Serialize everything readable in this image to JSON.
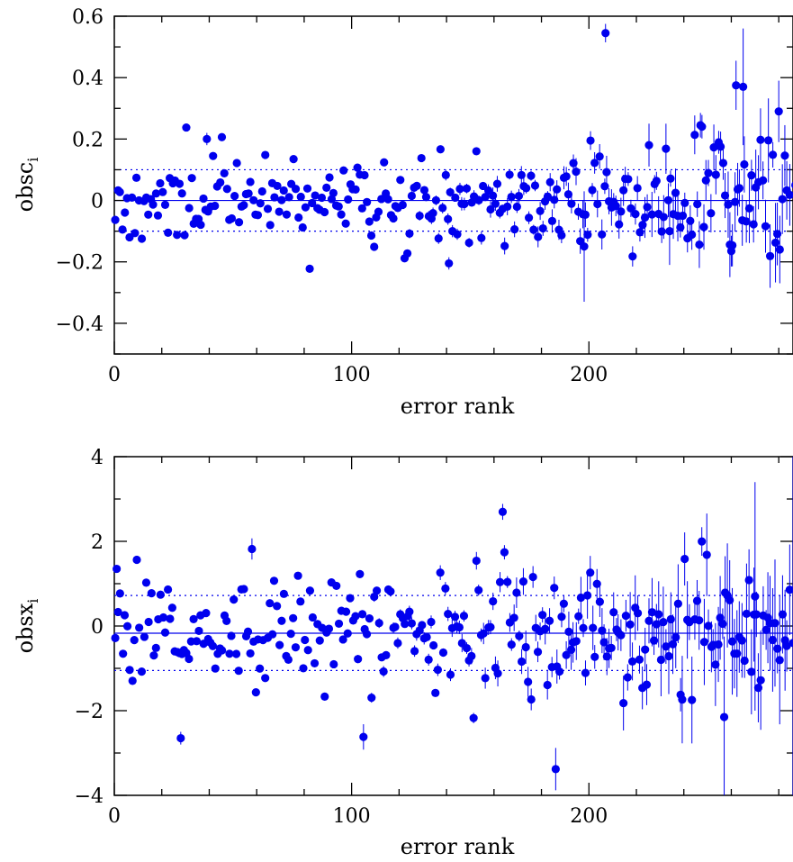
{
  "chart_data": [
    {
      "type": "scatter",
      "xlabel": "error rank",
      "ylabel_main": "obsc",
      "ylabel_sub": "i",
      "xlim": [
        0,
        286
      ],
      "ylim": [
        -0.5,
        0.6
      ],
      "xticks_major": [
        0,
        100,
        200
      ],
      "xtick_labels": [
        "0",
        "100",
        "200"
      ],
      "xticks_minor_step": 20,
      "yticks_major": [
        -0.4,
        -0.2,
        0,
        0.2,
        0.4,
        0.6
      ],
      "ytick_labels": [
        "−0.4",
        "−0.2",
        "0",
        "0.2",
        "0.4",
        "0.6"
      ],
      "yticks_minor_step": 0.1,
      "reference_line": 0,
      "dashed_lines": [
        0.1,
        -0.1
      ],
      "seed": 11,
      "n_points": 285,
      "base_spread": 0.085,
      "spread_growth": 0.06,
      "base_error": 0.005,
      "error_growth": 0.11,
      "notable_points": [
        {
          "x": 207,
          "y": 0.545,
          "err": 0.03
        },
        {
          "x": 262,
          "y": 0.375,
          "err": 0.08
        },
        {
          "x": 265,
          "y": 0.37,
          "err": 0.19
        },
        {
          "x": 280,
          "y": 0.29,
          "err": 0.1
        },
        {
          "x": 247,
          "y": 0.245,
          "err": 0.04
        },
        {
          "x": 39,
          "y": 0.2,
          "err": 0.02
        },
        {
          "x": 141,
          "y": -0.205,
          "err": 0.02
        },
        {
          "x": 198,
          "y": -0.15,
          "err": 0.18
        },
        {
          "x": 260,
          "y": -0.165,
          "err": 0.05
        },
        {
          "x": 234,
          "y": -0.1,
          "err": 0.11
        },
        {
          "x": 287,
          "y": 0.05,
          "err": 0.14
        }
      ],
      "color": "#0000ee"
    },
    {
      "type": "scatter",
      "xlabel": "error rank",
      "ylabel_main": "obsx",
      "ylabel_sub": "i",
      "xlim": [
        0,
        286
      ],
      "ylim": [
        -4,
        4
      ],
      "xticks_major": [
        0,
        100,
        200
      ],
      "xtick_labels": [
        "0",
        "100",
        "200"
      ],
      "xticks_minor_step": 20,
      "yticks_major": [
        -4,
        -2,
        0,
        2,
        4
      ],
      "ytick_labels": [
        "−4",
        "−2",
        "0",
        "2",
        "4"
      ],
      "yticks_minor_step": 1,
      "reference_line": -0.17,
      "dashed_lines": [
        0.72,
        -1.05
      ],
      "seed": 29,
      "n_points": 285,
      "base_spread": 0.75,
      "spread_growth": 0.35,
      "base_error": 0.04,
      "error_growth": 1.3,
      "notable_points": [
        {
          "x": 1,
          "y": 1.35,
          "err": 0.05
        },
        {
          "x": 28,
          "y": -2.65,
          "err": 0.15
        },
        {
          "x": 58,
          "y": 1.82,
          "err": 0.25
        },
        {
          "x": 105,
          "y": -2.62,
          "err": 0.3
        },
        {
          "x": 186,
          "y": -3.38,
          "err": 0.5
        },
        {
          "x": 257,
          "y": -2.15,
          "err": 1.9
        },
        {
          "x": 270,
          "y": 0.7,
          "err": 2.7
        },
        {
          "x": 286,
          "y": -0.4,
          "err": 4.4
        }
      ],
      "color": "#0000ee"
    }
  ]
}
